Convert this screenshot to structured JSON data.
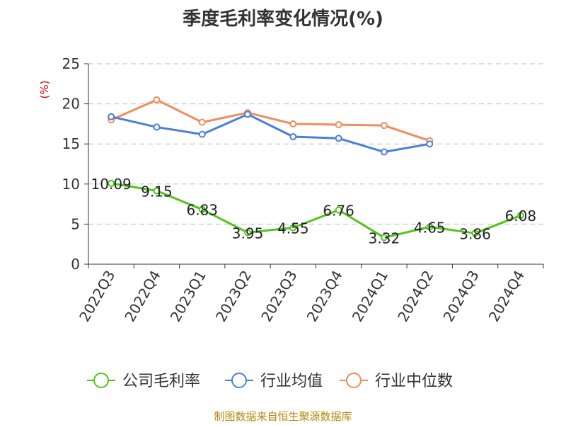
{
  "chart_data": {
    "type": "line",
    "title": "季度毛利率变化情况(%)",
    "ylabel": "(%)",
    "xlabel": "",
    "categories": [
      "2022Q3",
      "2022Q4",
      "2023Q1",
      "2023Q2",
      "2023Q3",
      "2023Q4",
      "2024Q1",
      "2024Q2",
      "2024Q3",
      "2024Q4"
    ],
    "ylim": [
      0,
      25
    ],
    "yticks": [
      0,
      5,
      10,
      15,
      20,
      25
    ],
    "grid": true,
    "legend_position": "bottom",
    "series": [
      {
        "name": "公司毛利率",
        "color": "#52c41a",
        "show_labels": true,
        "values": [
          10.09,
          9.15,
          6.83,
          3.95,
          4.55,
          6.76,
          3.32,
          4.65,
          3.86,
          6.08
        ]
      },
      {
        "name": "行业均值",
        "color": "#4a7fdc",
        "show_labels": false,
        "values": [
          18.4,
          17.1,
          16.2,
          18.7,
          15.9,
          15.7,
          14.0,
          15.0,
          null,
          null
        ]
      },
      {
        "name": "行业中位数",
        "color": "#f28c5a",
        "show_labels": false,
        "values": [
          18.0,
          20.5,
          17.7,
          18.9,
          17.5,
          17.4,
          17.3,
          15.4,
          null,
          null
        ]
      }
    ]
  },
  "source": "制图数据来自恒生聚源数据库"
}
